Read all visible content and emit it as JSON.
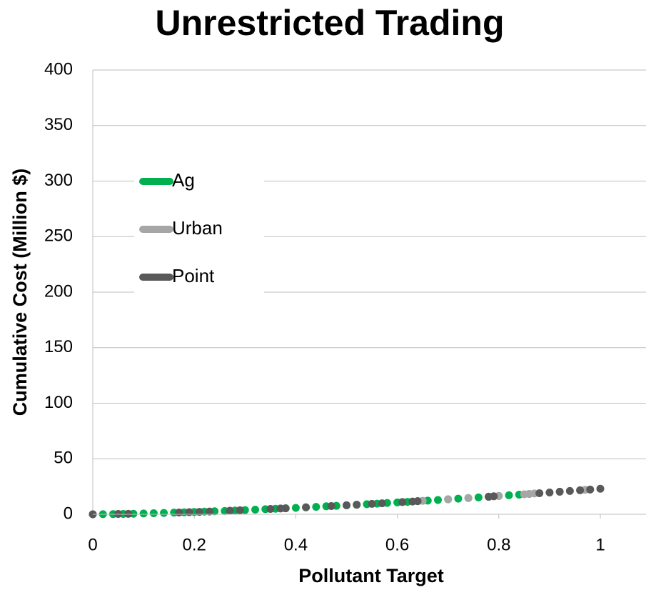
{
  "chart_data": {
    "type": "scatter",
    "title": "Unrestricted Trading",
    "x_label": "Pollutant Target",
    "y_label": "Cumulative Cost (Million $)",
    "xlim": [
      0,
      1.09
    ],
    "xticks": [
      0,
      0.2,
      0.4,
      0.6,
      0.8,
      1
    ],
    "ylim": [
      0,
      400
    ],
    "yticks": [
      0,
      50,
      100,
      150,
      200,
      250,
      300,
      350,
      400
    ],
    "grid": true,
    "legend": "left",
    "series": [
      {
        "name": "Ag",
        "color": "#00b050",
        "x": [
          0,
          0.02,
          0.04,
          0.06,
          0.08,
          0.1,
          0.12,
          0.14,
          0.16,
          0.18,
          0.2,
          0.22,
          0.24,
          0.26,
          0.28,
          0.3,
          0.32,
          0.34,
          0.36,
          0.38,
          0.4,
          0.42,
          0.44,
          0.46,
          0.48,
          0.5,
          0.52,
          0.54,
          0.56,
          0.58,
          0.6,
          0.62,
          0.64,
          0.66,
          0.68,
          0.7,
          0.72,
          0.74,
          0.76,
          0.78,
          0.8,
          0.82,
          0.84,
          0.86
        ],
        "values": [
          0,
          0.1,
          0.2,
          0.3,
          0.5,
          0.7,
          1.0,
          1.2,
          1.5,
          1.8,
          2.1,
          2.4,
          2.7,
          3.0,
          3.4,
          3.8,
          4.2,
          4.6,
          5.0,
          5.4,
          5.8,
          6.3,
          6.7,
          7.2,
          7.6,
          8.1,
          8.6,
          9.1,
          9.6,
          10.2,
          10.7,
          11.2,
          11.8,
          12.3,
          12.9,
          13.5,
          14.1,
          14.6,
          15.2,
          15.8,
          16.5,
          17.1,
          17.7,
          18.3
        ]
      },
      {
        "name": "Urban",
        "color": "#a6a6a6",
        "x": [
          0.65,
          0.7,
          0.74,
          0.8,
          0.85,
          0.86,
          0.87,
          0.97
        ],
        "values": [
          12.1,
          13.5,
          14.6,
          16.5,
          18.0,
          18.3,
          18.7,
          22.0
        ]
      },
      {
        "name": "Point",
        "color": "#595959",
        "x": [
          0,
          0.05,
          0.07,
          0.17,
          0.19,
          0.21,
          0.23,
          0.27,
          0.29,
          0.35,
          0.37,
          0.38,
          0.42,
          0.47,
          0.5,
          0.52,
          0.55,
          0.57,
          0.61,
          0.63,
          0.64,
          0.78,
          0.79,
          0.88,
          0.9,
          0.92,
          0.94,
          0.96,
          0.98,
          1
        ],
        "values": [
          0,
          0.3,
          0.4,
          1.6,
          1.9,
          2.2,
          2.5,
          3.2,
          3.6,
          4.8,
          5.2,
          5.4,
          6.3,
          7.4,
          8.1,
          8.6,
          9.4,
          9.9,
          11.0,
          11.5,
          11.8,
          15.8,
          16.2,
          19.0,
          19.6,
          20.3,
          21.0,
          21.6,
          22.3,
          23.0
        ]
      }
    ]
  }
}
